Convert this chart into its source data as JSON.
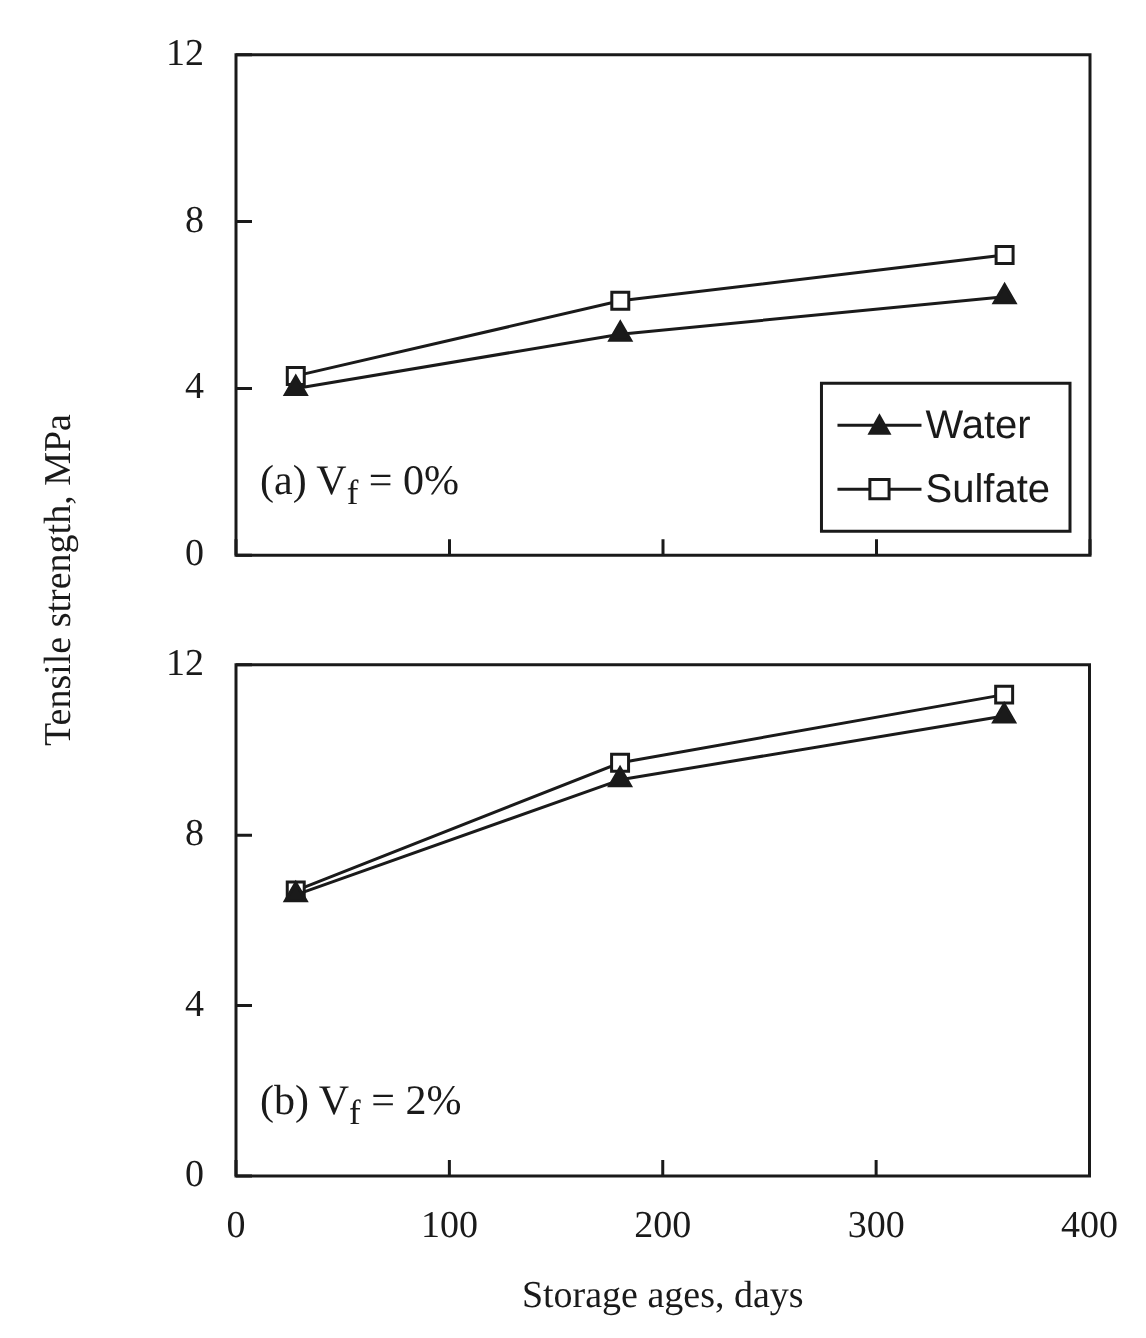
{
  "chart_data": [
    {
      "type": "line",
      "ylabel": "Tensile strength, MPa",
      "x": [
        28,
        180,
        360
      ],
      "xlim": [
        0,
        400
      ],
      "xticks": [
        0,
        100,
        200,
        300,
        400
      ],
      "ylim": [
        0,
        12
      ],
      "yticks": [
        0,
        4,
        8,
        12
      ],
      "tick_labels": "y",
      "legend": "bottom right",
      "annotations": [
        "(a) V$_{f}$ = 0%"
      ],
      "series": [
        {
          "name": "Water",
          "color": "#1a1a1a",
          "marker": "triangle",
          "values": [
            4.0,
            5.3,
            6.2
          ]
        },
        {
          "name": "Sulfate",
          "color": "#1a1a1a",
          "marker": "square",
          "values": [
            4.3,
            6.1,
            7.2
          ]
        }
      ]
    },
    {
      "type": "line",
      "xlabel": "Storage ages, days",
      "x": [
        28,
        180,
        360
      ],
      "xlim": [
        0,
        400
      ],
      "xticks": [
        0,
        100,
        200,
        300,
        400
      ],
      "ylim": [
        0,
        12
      ],
      "yticks": [
        0,
        4,
        8,
        12
      ],
      "annotations": [
        "(b) V$_{f}$ = 2%"
      ],
      "series": [
        {
          "color": "#1a1a1a",
          "marker": "triangle",
          "values": [
            6.6,
            9.3,
            10.8
          ]
        },
        {
          "color": "#1a1a1a",
          "marker": "square",
          "values": [
            6.7,
            9.7,
            11.3
          ]
        }
      ]
    }
  ]
}
